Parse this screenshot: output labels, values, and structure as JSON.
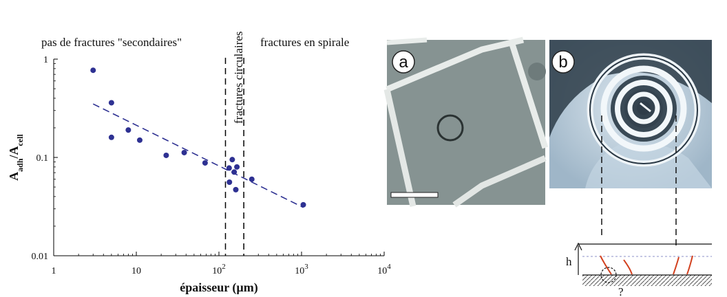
{
  "chart_data": {
    "type": "scatter",
    "xscale": "log",
    "yscale": "log",
    "xlim": [
      1,
      10000
    ],
    "ylim": [
      0.01,
      1
    ],
    "xlabel": "épaisseur (µm)",
    "ylabel": {
      "main": "A",
      "sub1": "adh",
      "mid": "/A",
      "sub2": "cell"
    },
    "x_ticks": [
      {
        "value": 1,
        "label": "1",
        "exp": ""
      },
      {
        "value": 10,
        "label": "10",
        "exp": ""
      },
      {
        "value": 100,
        "label": "10",
        "exp": "2"
      },
      {
        "value": 1000,
        "label": "10",
        "exp": "3"
      },
      {
        "value": 10000,
        "label": "10",
        "exp": "4"
      }
    ],
    "y_ticks": [
      {
        "value": 1,
        "label": "1"
      },
      {
        "value": 0.1,
        "label": "0.1"
      },
      {
        "value": 0.01,
        "label": "0.01"
      }
    ],
    "points": [
      {
        "x": 3.0,
        "y": 0.77
      },
      {
        "x": 5.0,
        "y": 0.36
      },
      {
        "x": 5.0,
        "y": 0.16
      },
      {
        "x": 8.0,
        "y": 0.19
      },
      {
        "x": 11.0,
        "y": 0.15
      },
      {
        "x": 23.0,
        "y": 0.105
      },
      {
        "x": 38.0,
        "y": 0.112
      },
      {
        "x": 68.0,
        "y": 0.088
      },
      {
        "x": 133.0,
        "y": 0.078
      },
      {
        "x": 145.0,
        "y": 0.095
      },
      {
        "x": 153.0,
        "y": 0.071
      },
      {
        "x": 165.0,
        "y": 0.08
      },
      {
        "x": 134.0,
        "y": 0.056
      },
      {
        "x": 160.0,
        "y": 0.047
      },
      {
        "x": 250.0,
        "y": 0.06
      },
      {
        "x": 1050.0,
        "y": 0.033
      }
    ],
    "fit_line": {
      "x": [
        3,
        1050
      ],
      "y": [
        0.35,
        0.031
      ]
    },
    "vlines": [
      120,
      200
    ],
    "regions": [
      "pas de fractures \"secondaires\"",
      "fractures circulaires",
      "fractures en spirale"
    ],
    "color": "#2e3192"
  },
  "panels": {
    "a_label": "a",
    "b_label": "b"
  },
  "schematic": {
    "h_label": "h",
    "question": "?"
  }
}
